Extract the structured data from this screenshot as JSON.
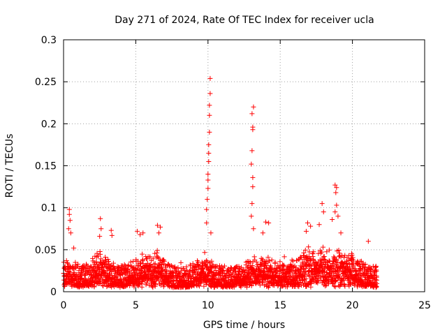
{
  "chart_data": {
    "type": "scatter",
    "title": "Day 271 of 2024, Rate Of TEC Index for receiver ucla",
    "xlabel": "GPS time / hours",
    "ylabel": "ROTI / TECUs",
    "xlim": [
      0,
      25
    ],
    "ylim": [
      0,
      0.3
    ],
    "x_ticks": [
      0,
      5,
      10,
      15,
      20,
      25
    ],
    "x_tick_labels": [
      "0",
      "5",
      "10",
      "15",
      "20",
      "25"
    ],
    "y_ticks": [
      0,
      0.05,
      0.1,
      0.15,
      0.2,
      0.25,
      0.3
    ],
    "y_tick_labels": [
      "0",
      "0.05",
      "0.1",
      "0.15",
      "0.2",
      "0.25",
      "0.3"
    ],
    "grid": true,
    "marker": "+",
    "color": "#ff0000",
    "series": [
      {
        "name": "ROTI",
        "x_range": [
          0,
          21.7
        ],
        "baseline_range": [
          0.005,
          0.03
        ],
        "notable_points": [
          {
            "x": 0.4,
            "y": 0.098
          },
          {
            "x": 0.4,
            "y": 0.092
          },
          {
            "x": 0.45,
            "y": 0.085
          },
          {
            "x": 0.35,
            "y": 0.075
          },
          {
            "x": 0.5,
            "y": 0.07
          },
          {
            "x": 2.55,
            "y": 0.087
          },
          {
            "x": 2.6,
            "y": 0.075
          },
          {
            "x": 2.5,
            "y": 0.066
          },
          {
            "x": 3.3,
            "y": 0.073
          },
          {
            "x": 3.35,
            "y": 0.067
          },
          {
            "x": 5.1,
            "y": 0.072
          },
          {
            "x": 5.3,
            "y": 0.068
          },
          {
            "x": 5.5,
            "y": 0.07
          },
          {
            "x": 6.5,
            "y": 0.079
          },
          {
            "x": 6.7,
            "y": 0.077
          },
          {
            "x": 6.6,
            "y": 0.07
          },
          {
            "x": 9.9,
            "y": 0.098
          },
          {
            "x": 9.95,
            "y": 0.11
          },
          {
            "x": 10.0,
            "y": 0.123
          },
          {
            "x": 10.0,
            "y": 0.133
          },
          {
            "x": 10.0,
            "y": 0.14
          },
          {
            "x": 10.05,
            "y": 0.155
          },
          {
            "x": 10.05,
            "y": 0.165
          },
          {
            "x": 10.05,
            "y": 0.175
          },
          {
            "x": 10.1,
            "y": 0.19
          },
          {
            "x": 10.1,
            "y": 0.21
          },
          {
            "x": 10.1,
            "y": 0.222
          },
          {
            "x": 10.15,
            "y": 0.236
          },
          {
            "x": 10.15,
            "y": 0.254
          },
          {
            "x": 9.9,
            "y": 0.082
          },
          {
            "x": 10.2,
            "y": 0.07
          },
          {
            "x": 13.05,
            "y": 0.105
          },
          {
            "x": 13.1,
            "y": 0.125
          },
          {
            "x": 13.1,
            "y": 0.136
          },
          {
            "x": 13.0,
            "y": 0.152
          },
          {
            "x": 13.05,
            "y": 0.168
          },
          {
            "x": 13.1,
            "y": 0.193
          },
          {
            "x": 13.1,
            "y": 0.196
          },
          {
            "x": 13.05,
            "y": 0.212
          },
          {
            "x": 13.15,
            "y": 0.22
          },
          {
            "x": 13.0,
            "y": 0.09
          },
          {
            "x": 13.15,
            "y": 0.075
          },
          {
            "x": 14.0,
            "y": 0.083
          },
          {
            "x": 14.2,
            "y": 0.082
          },
          {
            "x": 13.8,
            "y": 0.07
          },
          {
            "x": 16.9,
            "y": 0.082
          },
          {
            "x": 17.1,
            "y": 0.078
          },
          {
            "x": 16.8,
            "y": 0.072
          },
          {
            "x": 17.9,
            "y": 0.105
          },
          {
            "x": 18.0,
            "y": 0.095
          },
          {
            "x": 17.7,
            "y": 0.08
          },
          {
            "x": 18.6,
            "y": 0.086
          },
          {
            "x": 18.8,
            "y": 0.127
          },
          {
            "x": 18.9,
            "y": 0.124
          },
          {
            "x": 18.85,
            "y": 0.118
          },
          {
            "x": 18.9,
            "y": 0.103
          },
          {
            "x": 18.8,
            "y": 0.095
          },
          {
            "x": 19.0,
            "y": 0.09
          },
          {
            "x": 19.2,
            "y": 0.07
          },
          {
            "x": 21.1,
            "y": 0.06
          }
        ]
      }
    ]
  }
}
